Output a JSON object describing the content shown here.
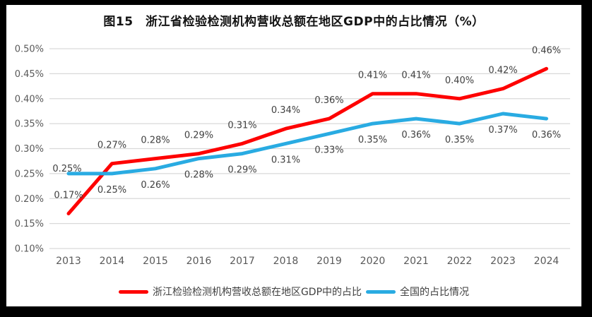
{
  "title": "图15　浙江省检验检测机构营收总额在地区GDP中的占比情况（%）",
  "colors": {
    "background": "#ffffff",
    "frame": "#000000",
    "gridline": "#d9d9d9",
    "axis_text": "#595959",
    "data_label_text": "#404040",
    "series_red": "#fe0000",
    "series_blue": "#29abe2"
  },
  "chart_data": {
    "type": "line",
    "title": "图15　浙江省检验检测机构营收总额在地区GDP中的占比情况（%）",
    "categories": [
      "2013",
      "2014",
      "2015",
      "2016",
      "2017",
      "2018",
      "2019",
      "2020",
      "2021",
      "2022",
      "2023",
      "2024"
    ],
    "series": [
      {
        "name": "浙江检验检测机构营收总额在地区GDP中的占比",
        "color": "#fe0000",
        "values": [
          0.17,
          0.27,
          0.28,
          0.29,
          0.31,
          0.34,
          0.36,
          0.41,
          0.41,
          0.4,
          0.42,
          0.46
        ],
        "labels": [
          "0.17%",
          "0.27%",
          "0.28%",
          "0.29%",
          "0.31%",
          "0.34%",
          "0.36%",
          "0.41%",
          "0.41%",
          "0.40%",
          "0.42%",
          "0.46%"
        ],
        "label_position": "above",
        "label_overrides": {}
      },
      {
        "name": "全国的占比情况",
        "color": "#29abe2",
        "values": [
          0.25,
          0.25,
          0.26,
          0.28,
          0.29,
          0.31,
          0.33,
          0.35,
          0.36,
          0.35,
          0.37,
          0.36
        ],
        "labels": [
          "0.25%",
          "0.25%",
          "0.26%",
          "0.28%",
          "0.29%",
          "0.31%",
          "0.33%",
          "0.35%",
          "0.36%",
          "0.35%",
          "0.37%",
          "0.36%"
        ],
        "label_position": "below",
        "label_overrides": {
          "0": {
            "dy": -3,
            "dx": -2
          }
        }
      }
    ],
    "ylim": [
      0.1,
      0.5
    ],
    "ytick_step": 0.05,
    "ytick_labels": [
      "0.50%",
      "0.45%",
      "0.40%",
      "0.35%",
      "0.30%",
      "0.25%",
      "0.20%",
      "0.15%",
      "0.10%"
    ],
    "grid": true,
    "legend_position": "bottom",
    "unit": "%"
  }
}
